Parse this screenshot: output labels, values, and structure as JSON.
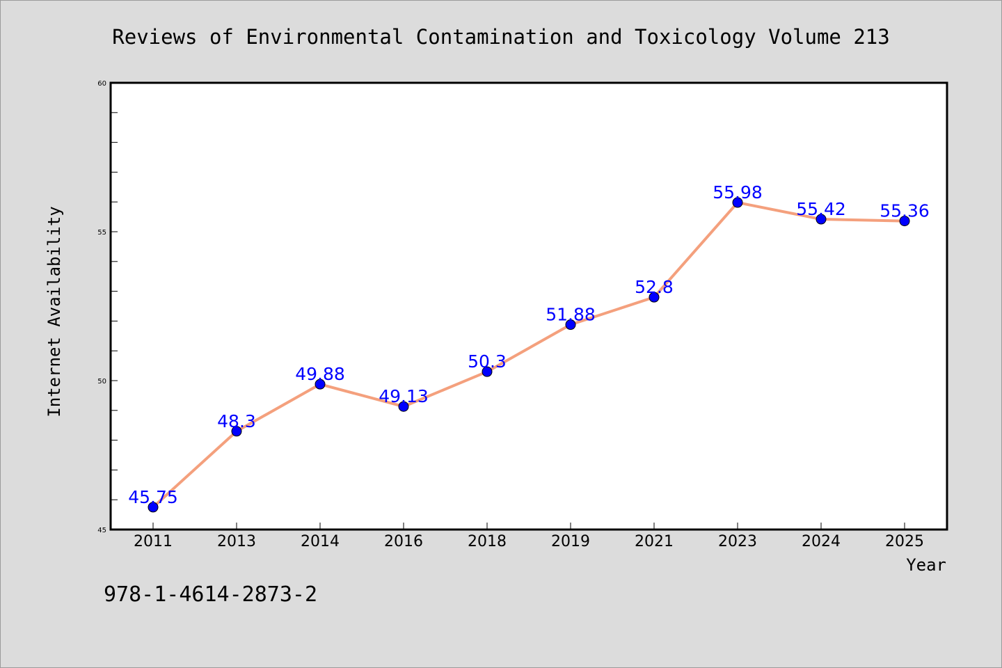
{
  "page": {
    "footer_text": "978-1-4614-2873-2"
  },
  "colors": {
    "background": "#dcdcdc",
    "plot_background": "#ffffff",
    "line": "#f4a07d",
    "marker": "#0000ff",
    "label": "#0000ff",
    "axis": "#000000"
  },
  "chart_data": {
    "type": "line",
    "title": "Reviews of Environmental Contamination and Toxicology Volume 213",
    "xlabel": "Year",
    "ylabel": "Internet Availability",
    "categories": [
      "2011",
      "2013",
      "2014",
      "2016",
      "2018",
      "2019",
      "2021",
      "2023",
      "2024",
      "2025"
    ],
    "series": [
      {
        "values": [
          45.75,
          48.3,
          49.88,
          49.13,
          50.3,
          51.88,
          52.8,
          55.98,
          55.42,
          55.36
        ],
        "data_labels": [
          "45.75",
          "48.3",
          "49.88",
          "49.13",
          "50.3",
          "51.88",
          "52.8",
          "55.98",
          "55.42",
          "55.36"
        ]
      }
    ],
    "ylim": [
      45,
      60
    ],
    "y_tick_labels": [
      "45",
      "50",
      "55",
      "60"
    ],
    "y_major_ticks": [
      45,
      50,
      55,
      60
    ],
    "y_minor_step": 1,
    "grid": false,
    "legend": "none"
  }
}
